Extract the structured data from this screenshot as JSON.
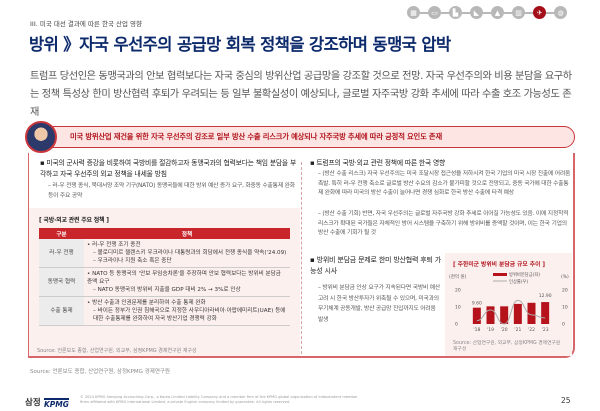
{
  "header": {
    "section": "III. 미국 대선 결과에 따른 한국 산업 영향",
    "title": "방위 》자국 우선주의 공급망 회복 정책을 강조하며 동맹국 압박",
    "industry_icons": [
      "chip-icon",
      "car-icon",
      "factory-icon",
      "ship-icon",
      "building-icon",
      "city-icon",
      "jet-icon",
      "globe-icon"
    ],
    "active_icon": "jet-icon"
  },
  "lead": "트럼프 당선인은 동맹국과의 안보 협력보다는 자국 중심의 방위산업 공급망을 강조할 것으로 전망. 자국 우선주의와 비용 분담을 요구하는 정책 특성상 한미 방산협력 후퇴가 우려되는 등 일부 불확실성이 예상되나, 글로벌 자주국방 강화 추세에 따라 수출 호조 가능성도 존재",
  "banner": "미국 방위산업 재건을 위한 자국 우선주의 강조로 일부 방산 수출 리스크가 예상되나 자주국방 추세에 따라 긍정적 요인도 존재",
  "left": {
    "bullet": "미국의 군사력 증강을 비롯하여 국방비를 절감하고자 동맹국과의 협력보다는 책임 분담을 부각하고 자국 우선주의 외교 정책을 내세울 방침",
    "sub": "러-우 전쟁 종식, 북대서양 조약 기구(NATO) 동맹국들에 대한 방위 예산 증가 요구, 화중동 수출통제 완화 등이 주요 공약",
    "table_title": "[ 국방·외교 관련 주요 정책 ]",
    "table_headers": [
      "구분",
      "정책"
    ],
    "rows": [
      {
        "key": "러-우 전쟁",
        "lines": [
          "• 러-우 전쟁 조기 종전",
          "– 볼로디미르 젤렌스키 우크라이나 대통령과의 회담에서 전쟁 종식을 약속('24.09)",
          "– 우크라이나 지원 축소 혹은 중단"
        ]
      },
      {
        "key": "동맹국 협력",
        "lines": [
          "• NATO 등 동맹국의 '안보 무임승차론'을 주장하며 안보 협력보다는 방위비 분담금 증액 요구",
          "– NATO 동맹국의 방위비 지출을 GDP 대비 2% → 3%로 인상"
        ]
      },
      {
        "key": "수출 통제",
        "lines": [
          "• 방산 수출과 인권문제를 분리하여 수출 통제 완화",
          "– 바이든 정부가 인권 침해국으로 지정한 사우디아라비아·아랍에미리트(UAE) 등에 대한 수출통제를 완화하여 자국 방산기업 경쟁력 강화"
        ]
      }
    ],
    "table_source": "Source: 언론보도 종합, 산업연구원, 외교부, 삼정KPMG 경제연구원 재구성"
  },
  "right": {
    "bullet1": "트럼프의 국방·외교 관련 정책에 따른 한국 영향",
    "sub1": [
      "(방산 수출 리스크) 자국 우선주의는 미국 조달시장 접근성을 저하시켜 한국 기업의 미국 시장 진출에 어려움 촉발. 특히 러-우 전쟁 축소로 글로벌 방산 수요의 감소가 불가피할 것으로 전망되고, 중동 국가에 대한 수출통제 완화에 따라 미국의 방산 수출이 늘어나면 경쟁 심화로 한국 방산 수출에 타격 예상",
      "(방산 수출 기회) 반면, 자국 우선주의는 글로벌 자주국방 강화 추세로 이어질 가능성도 있음. 이에 지정학적 리스크가 확대된 국가들은 자체적인 방어 시스템을 구축하기 위해 방위비를 증액할 것이며, 이는 한국 기업의 방산 수출에 기회가 될 것"
    ],
    "bullet2": "방위비 분담금 문제로 한미 방산협력 후퇴 가능성 시사",
    "sub2": "방위비 분담금 인상 요구가 지속된다면 국방비 예산 고려 시 한국 방산투자가 위축될 수 있으며, 미국과의 무기체계 공동개발, 방산 공급망 진입까지도 어려움 발생"
  },
  "chart_data": {
    "type": "bar",
    "title": "[ 주한미군 방위비 분담금 규모 추이 ]",
    "categories": [
      "'18",
      "'19",
      "'20",
      "'21",
      "'22",
      "'23"
    ],
    "series": [
      {
        "name": "방위비분담금(좌)",
        "type": "bar",
        "axis": "left",
        "values": [
          9.6,
          10.39,
          10.39,
          11.83,
          12.47,
          12.9
        ],
        "color": "#b5121b"
      },
      {
        "name": "인상률(우)",
        "type": "line",
        "axis": "right",
        "values": [
          2.0,
          8.2,
          0.0,
          13.9,
          5.4,
          3.5
        ],
        "color": "#aaaaaa"
      }
    ],
    "data_labels": {
      "first": "9.60",
      "last": "12.90"
    },
    "ylabel_left": "(천억 원)",
    "ylabel_right": "(%)",
    "ylim": [
      0,
      20
    ],
    "y_ticks": [
      "0",
      "10",
      "20"
    ],
    "source": "Source: 산업연구원, 외교부, 삼정KPMG 경제연구원 재구성"
  },
  "source": "Source: 언론보도 종합, 산업연구원, 삼정KPMG 경제연구원",
  "footer": {
    "logo_text": "삼정",
    "logo_brand": "KPMG",
    "copyright": "© 2024 KPMG Samjong Accounting Corp., a Korea Limited Liability Company and a member firm of the KPMG global organization of independent member firms affiliated with KPMG International Limited, a private English company limited by guarantee. All rights reserved.",
    "page": "25"
  }
}
